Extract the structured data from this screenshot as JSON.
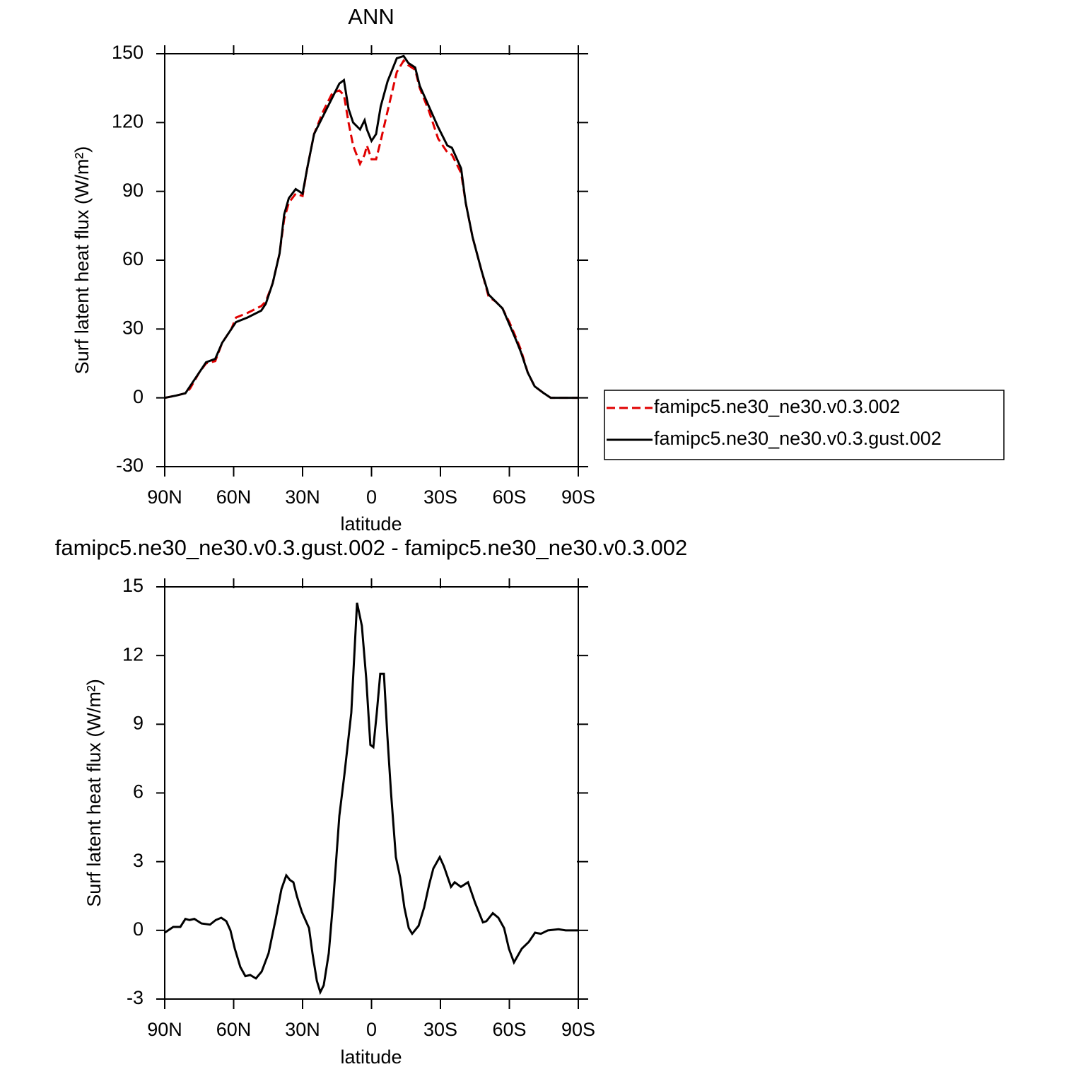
{
  "chart_data": [
    {
      "type": "line",
      "title": "ANN",
      "xlabel": "latitude",
      "ylabel": "Surf latent heat flux (W/m²)",
      "x": [
        90,
        85,
        81,
        79,
        75,
        72,
        68,
        65,
        61,
        59,
        54,
        48,
        46,
        43,
        40,
        38,
        36,
        33,
        30,
        28,
        25,
        21,
        17,
        14,
        12,
        10,
        8,
        5,
        3,
        2,
        0,
        -2,
        -4,
        -7,
        -11,
        -14,
        -16,
        -19,
        -21,
        -25,
        -29,
        -33,
        -35,
        -39,
        -41,
        -44,
        -48,
        -51,
        -54,
        -57,
        -60,
        -63,
        -65,
        -68,
        -71,
        -75,
        -78,
        -81,
        -86,
        -90
      ],
      "series": [
        {
          "name": "famipc5.ne30_ne30.v0.3.002",
          "color": "#e00000",
          "line_style": "dashed",
          "values": [
            0,
            1,
            2,
            4,
            11,
            15,
            16,
            24,
            30,
            35,
            37,
            40,
            42,
            50,
            63,
            78,
            85,
            89,
            88,
            100,
            115,
            125,
            133,
            134,
            132,
            120,
            110,
            102,
            106,
            110,
            104,
            104,
            112,
            125,
            142,
            147,
            145,
            143,
            135,
            125,
            113,
            107,
            106,
            98,
            85,
            70,
            55,
            44,
            42,
            39,
            33,
            26,
            21,
            11,
            5,
            2,
            0,
            0,
            0,
            0
          ]
        },
        {
          "name": "famipc5.ne30_ne30.v0.3.gust.002",
          "color": "#000000",
          "line_style": "solid",
          "values": [
            0,
            1,
            2,
            5,
            11,
            15.5,
            17,
            24,
            30,
            33,
            35,
            38,
            41,
            50,
            63,
            80,
            87,
            91,
            89,
            100,
            115,
            123,
            131,
            137,
            138.5,
            126,
            120,
            117,
            121,
            117,
            112,
            115,
            127,
            138,
            148,
            149,
            146,
            144,
            136,
            127,
            118,
            110,
            109,
            100,
            85,
            70,
            55,
            45,
            42,
            39,
            32,
            25,
            20,
            11,
            5,
            2,
            0,
            0,
            0,
            0
          ]
        }
      ],
      "xlim": [
        90,
        -90
      ],
      "xticks": [
        {
          "value": 90,
          "label": "90N"
        },
        {
          "value": 60,
          "label": "60N"
        },
        {
          "value": 30,
          "label": "30N"
        },
        0,
        {
          "value": -30,
          "label": "30S"
        },
        {
          "value": -60,
          "label": "60S"
        },
        {
          "value": -90,
          "label": "90S"
        }
      ],
      "ylim": [
        -30,
        150
      ],
      "yticks": [
        -30,
        0,
        30,
        60,
        90,
        120,
        150
      ],
      "legend": "right"
    },
    {
      "type": "line",
      "title": "famipc5.ne30_ne30.v0.3.gust.002 - famipc5.ne30_ne30.v0.3.002",
      "xlabel": "latitude",
      "ylabel": "Surf latent heat flux (W/m²)",
      "x": [
        90,
        86.3,
        83.2,
        81,
        79.2,
        77.1,
        74,
        70.3,
        67.8,
        65.4,
        63.2,
        61.4,
        59.5,
        57.1,
        54.9,
        52.8,
        50.3,
        47.8,
        44.8,
        41.7,
        39.2,
        37.1,
        35.5,
        34,
        32.5,
        30.3,
        27.2,
        25.7,
        23.8,
        22.3,
        20.8,
        18.6,
        16.5,
        14,
        11.8,
        8.8,
        6.3,
        4.2,
        2.3,
        0.5,
        -0.8,
        -2.3,
        -3.8,
        -5.4,
        -6.9,
        -8.5,
        -10.6,
        -12.5,
        -14.3,
        -16.2,
        -17.7,
        -20.5,
        -22.9,
        -25.1,
        -26.9,
        -29.7,
        -31.5,
        -34.6,
        -36.2,
        -38.9,
        -42,
        -45.1,
        -48.5,
        -50,
        -52.8,
        -55.2,
        -57.7,
        -59.8,
        -62,
        -65.4,
        -68.5,
        -71.2,
        -73.7,
        -76.8,
        -81.4,
        -84.5,
        -87.5,
        -90
      ],
      "series": [
        {
          "color": "#000000",
          "line_style": "solid",
          "values": [
            -0.1,
            0.15,
            0.15,
            0.5,
            0.45,
            0.5,
            0.3,
            0.25,
            0.45,
            0.55,
            0.4,
            0,
            -0.8,
            -1.6,
            -2,
            -1.95,
            -2.1,
            -1.8,
            -1,
            0.5,
            1.8,
            2.4,
            2.2,
            2.1,
            1.5,
            0.8,
            0.1,
            -1,
            -2.2,
            -2.7,
            -2.4,
            -1,
            1.5,
            5,
            6.8,
            9.5,
            14.3,
            13.3,
            11,
            8.1,
            8,
            9.5,
            11.2,
            11.2,
            8.5,
            6,
            3.2,
            2.3,
            1,
            0.1,
            -0.15,
            0.2,
            1,
            2,
            2.7,
            3.2,
            2.8,
            1.9,
            2.1,
            1.9,
            2.1,
            1.2,
            0.35,
            0.4,
            0.75,
            0.55,
            0.1,
            -0.8,
            -1.4,
            -0.8,
            -0.5,
            -0.1,
            -0.15,
            0,
            0.05,
            0,
            0,
            0
          ]
        }
      ],
      "xlim": [
        90,
        -90
      ],
      "xticks": [
        {
          "value": 90,
          "label": "90N"
        },
        {
          "value": 60,
          "label": "60N"
        },
        {
          "value": 30,
          "label": "30N"
        },
        0,
        {
          "value": -30,
          "label": "30S"
        },
        {
          "value": -60,
          "label": "60S"
        },
        {
          "value": -90,
          "label": "90S"
        }
      ],
      "ylim": [
        -3,
        15
      ],
      "yticks": [
        -3,
        0,
        3,
        6,
        9,
        12,
        15
      ]
    }
  ]
}
